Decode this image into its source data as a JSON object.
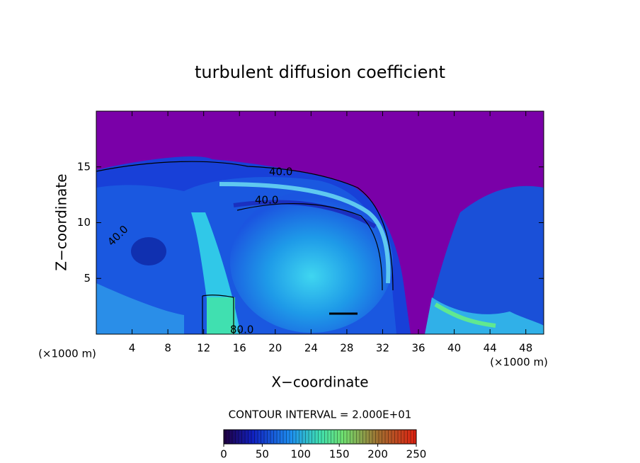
{
  "chart_data": {
    "type": "contour",
    "title": "turbulent diffusion coefficient",
    "xlabel": "X−coordinate",
    "ylabel": "Z−coordinate",
    "x_unit": "(×1000 m)",
    "xlim": [
      0,
      50
    ],
    "xticks": [
      4,
      8,
      12,
      16,
      20,
      24,
      28,
      32,
      36,
      40,
      44,
      48
    ],
    "ylim": [
      0,
      20
    ],
    "yticks": [
      5,
      10,
      15
    ],
    "contour_labels": [
      {
        "value": 40,
        "label": "40.0"
      },
      {
        "value": 40,
        "label": "40.0"
      },
      {
        "value": 40,
        "label": "40.0"
      },
      {
        "value": 80,
        "label": "80.0"
      }
    ],
    "contour_interval_label": "CONTOUR INTERVAL = 2.000E+01",
    "colorbar": {
      "lim": [
        0,
        250
      ],
      "ticks": [
        0,
        50,
        100,
        150,
        200,
        250
      ]
    }
  }
}
